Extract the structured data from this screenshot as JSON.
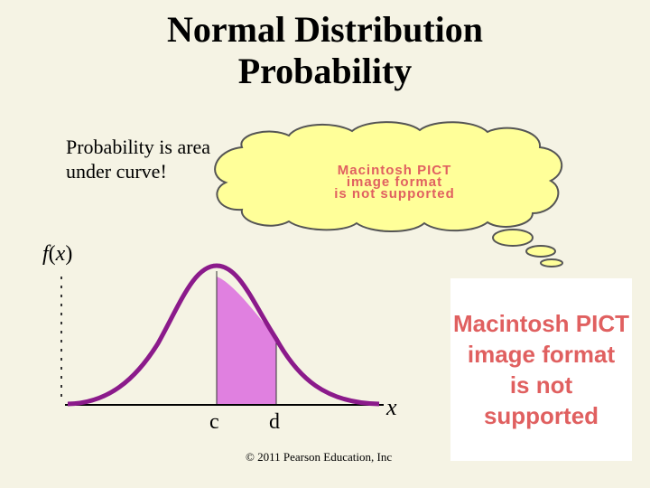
{
  "title_line1": "Normal Distribution",
  "title_line2": "Probability",
  "caption": "Probability is area under curve!",
  "y_axis_label_f": "f",
  "y_axis_label_x": "x",
  "tick_c": "c",
  "tick_d": "d",
  "x_axis_label": "x",
  "pict_placeholder": [
    "Macintosh PICT",
    "image format",
    "is not supported"
  ],
  "copyright": "© 2011 Pearson Education, Inc",
  "colors": {
    "background": "#f5f3e4",
    "curve": "#8b1a8b",
    "shaded_area": "#e080e0",
    "thought_cloud": "#ffff99",
    "pict_text": "#e06060"
  }
}
